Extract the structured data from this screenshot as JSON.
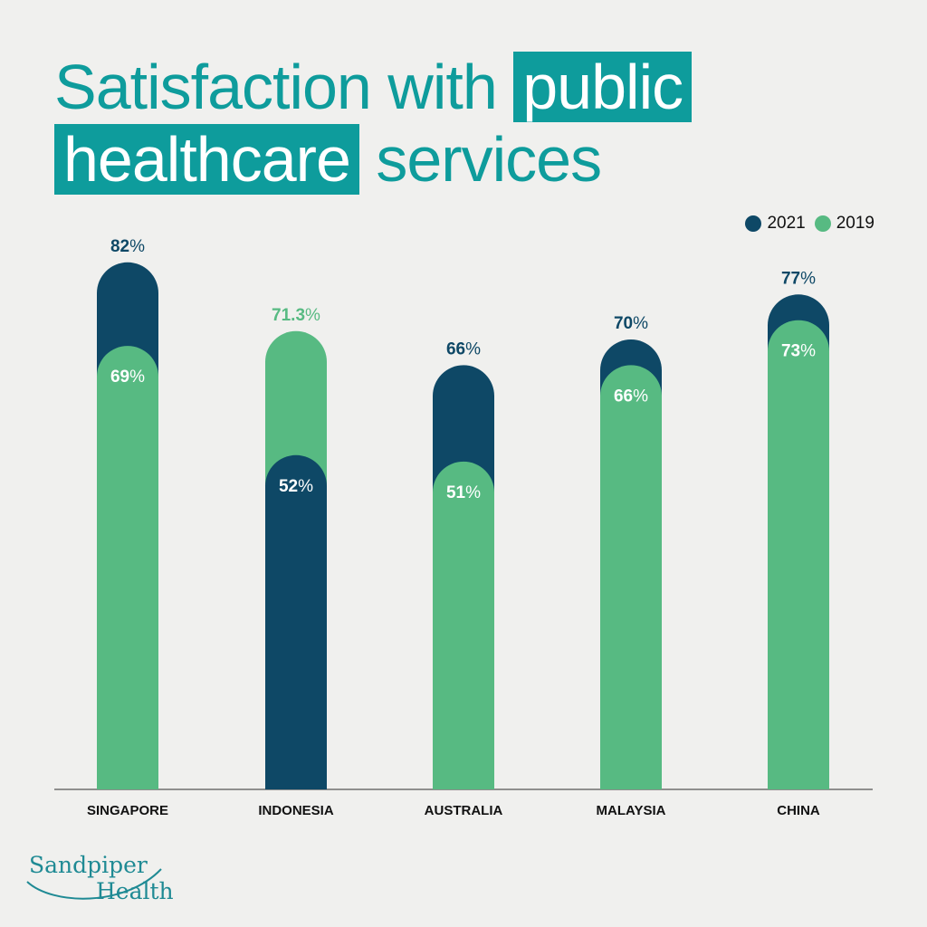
{
  "title": {
    "line1_plain": "Satisfaction with",
    "line1_highlight": "public",
    "line2_highlight": "healthcare",
    "line2_plain": "services"
  },
  "legend": [
    {
      "label": "2021",
      "color": "#0e4866"
    },
    {
      "label": "2019",
      "color": "#57ba82"
    }
  ],
  "logo": {
    "line1": "Sandpiper",
    "line2": "Health"
  },
  "chart_data": {
    "type": "bar",
    "title": "Satisfaction with public healthcare services",
    "categories": [
      "SINGAPORE",
      "INDONESIA",
      "AUSTRALIA",
      "MALAYSIA",
      "CHINA"
    ],
    "series": [
      {
        "name": "2021",
        "color": "#0e4866",
        "values": [
          82,
          52,
          66,
          70,
          77
        ]
      },
      {
        "name": "2019",
        "color": "#57ba82",
        "values": [
          69,
          71.3,
          51,
          66,
          73
        ]
      }
    ],
    "value_suffix": "%",
    "layered_bars": true,
    "grid": false,
    "legend_position": "top-right",
    "colors": {
      "baseline": "#555555",
      "category_label": "#111111",
      "inner_label": "#ffffff"
    }
  }
}
